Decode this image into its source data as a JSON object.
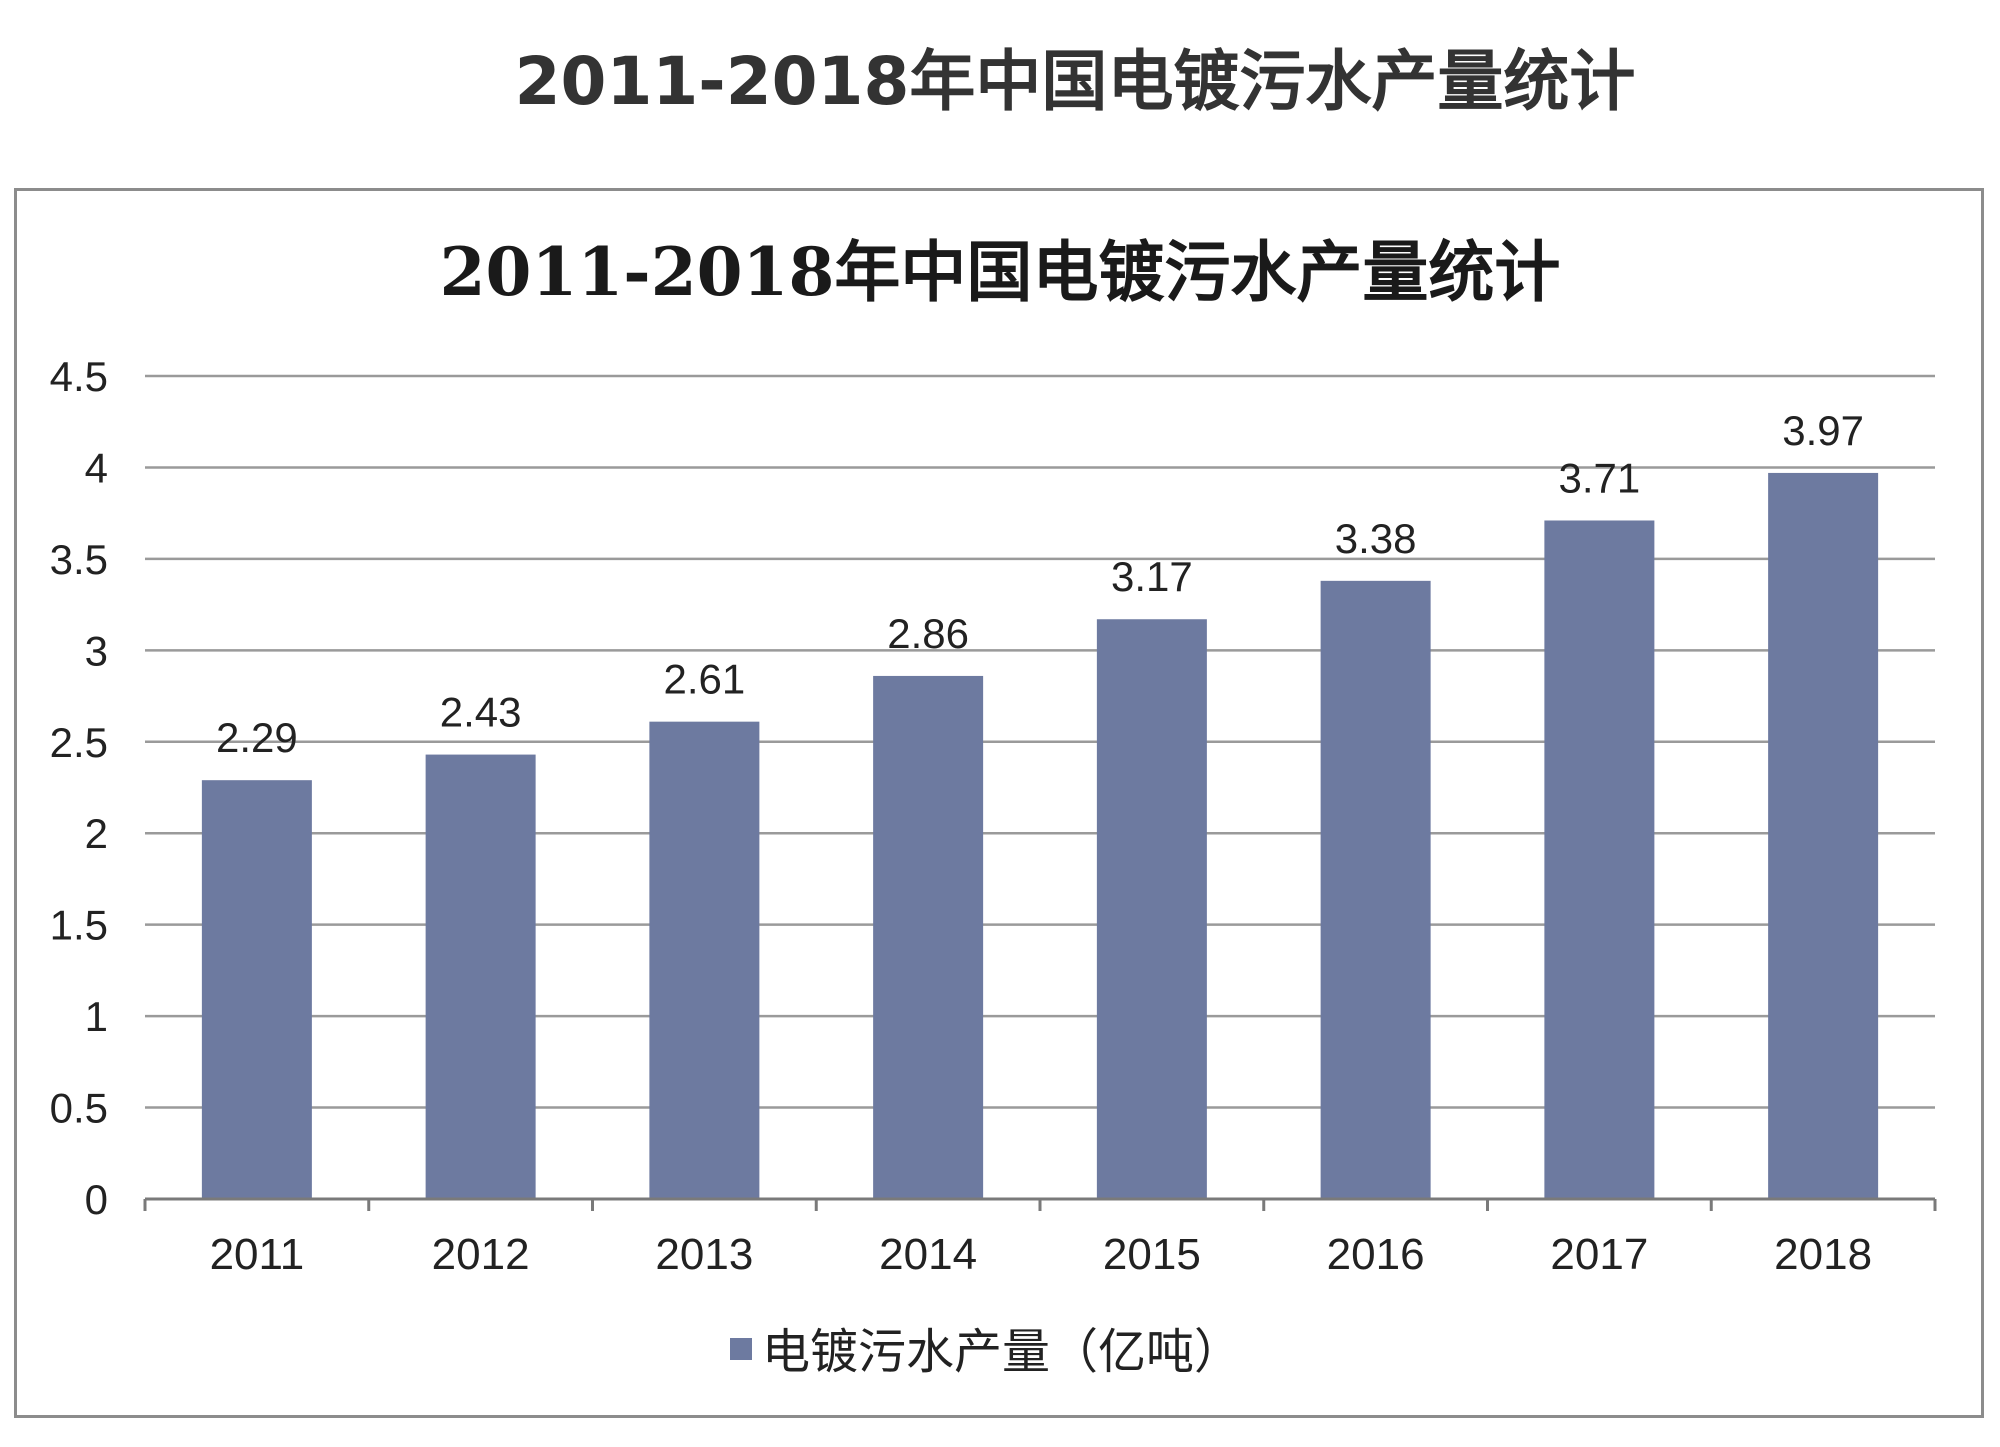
{
  "page": {
    "title": "2011-2018年中国电镀污水产量统计"
  },
  "chart_data": {
    "type": "bar",
    "title": "2011-2018年中国电镀污水产量统计",
    "categories": [
      "2011",
      "2012",
      "2013",
      "2014",
      "2015",
      "2016",
      "2017",
      "2018"
    ],
    "series": [
      {
        "name": "电镀污水产量（亿吨）",
        "color": "#6d7aa0",
        "values": [
          2.29,
          2.43,
          2.61,
          2.86,
          3.17,
          3.38,
          3.71,
          3.97
        ]
      }
    ],
    "data_labels": [
      "2.29",
      "2.43",
      "2.61",
      "2.86",
      "3.17",
      "3.38",
      "3.71",
      "3.97"
    ],
    "y_ticks": [
      "0",
      "0.5",
      "1",
      "1.5",
      "2",
      "2.5",
      "3",
      "3.5",
      "4",
      "4.5"
    ],
    "ylim": [
      0,
      4.5
    ],
    "grid": true,
    "legend_position": "bottom",
    "xlabel": "",
    "ylabel": ""
  }
}
